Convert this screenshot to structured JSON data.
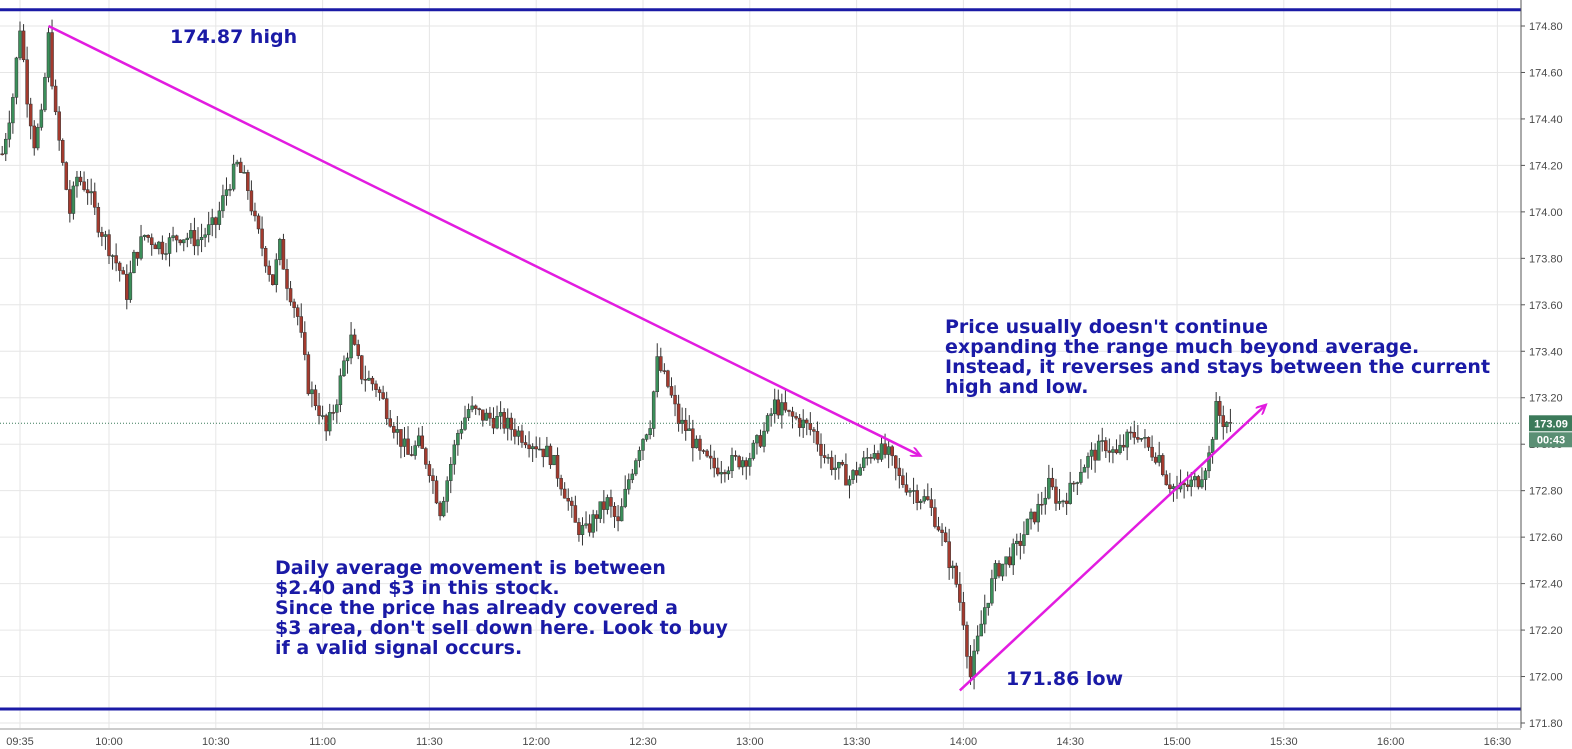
{
  "chart_data": {
    "type": "candlestick",
    "x_ticks": [
      "09:35",
      "10:00",
      "10:30",
      "11:00",
      "11:30",
      "12:00",
      "12:30",
      "13:00",
      "13:30",
      "14:00",
      "14:30",
      "15:00",
      "15:30",
      "16:00",
      "16:30"
    ],
    "y_ticks": [
      "174.80",
      "174.60",
      "174.40",
      "174.20",
      "174.00",
      "173.80",
      "173.60",
      "173.40",
      "173.20",
      "173.00",
      "172.80",
      "172.60",
      "172.40",
      "172.20",
      "172.00",
      "171.80"
    ],
    "y_range": [
      171.8,
      174.87
    ],
    "x_range_time": [
      "09:30",
      "16:40"
    ],
    "high_level": 174.87,
    "low_level": 171.86,
    "current_price": "173.09",
    "countdown": "00:43",
    "close_path": [
      [
        "09:30",
        174.25
      ],
      [
        "09:33",
        174.5
      ],
      [
        "09:35",
        174.8
      ],
      [
        "09:37",
        174.5
      ],
      [
        "09:39",
        174.3
      ],
      [
        "09:41",
        174.4
      ],
      [
        "09:43",
        174.75
      ],
      [
        "09:45",
        174.4
      ],
      [
        "09:47",
        174.2
      ],
      [
        "09:49",
        174.0
      ],
      [
        "09:51",
        174.15
      ],
      [
        "09:54",
        174.1
      ],
      [
        "09:57",
        173.95
      ],
      [
        "10:00",
        173.85
      ],
      [
        "10:03",
        173.75
      ],
      [
        "10:05",
        173.65
      ],
      [
        "10:07",
        173.8
      ],
      [
        "10:10",
        173.9
      ],
      [
        "10:15",
        173.85
      ],
      [
        "10:20",
        173.9
      ],
      [
        "10:25",
        173.88
      ],
      [
        "10:30",
        173.95
      ],
      [
        "10:33",
        174.1
      ],
      [
        "10:36",
        174.2
      ],
      [
        "10:39",
        174.1
      ],
      [
        "10:41",
        173.95
      ],
      [
        "10:44",
        173.8
      ],
      [
        "10:46",
        173.7
      ],
      [
        "10:48",
        173.85
      ],
      [
        "10:50",
        173.7
      ],
      [
        "10:53",
        173.55
      ],
      [
        "10:56",
        173.25
      ],
      [
        "10:59",
        173.15
      ],
      [
        "11:01",
        173.05
      ],
      [
        "11:04",
        173.2
      ],
      [
        "11:06",
        173.35
      ],
      [
        "11:08",
        173.45
      ],
      [
        "11:11",
        173.3
      ],
      [
        "11:15",
        173.25
      ],
      [
        "11:18",
        173.15
      ],
      [
        "11:21",
        173.05
      ],
      [
        "11:24",
        172.95
      ],
      [
        "11:27",
        173.0
      ],
      [
        "11:30",
        172.9
      ],
      [
        "11:33",
        172.72
      ],
      [
        "11:35",
        172.85
      ],
      [
        "11:38",
        173.05
      ],
      [
        "11:41",
        173.15
      ],
      [
        "11:45",
        173.12
      ],
      [
        "11:50",
        173.1
      ],
      [
        "11:55",
        173.05
      ],
      [
        "12:00",
        173.0
      ],
      [
        "12:04",
        172.95
      ],
      [
        "12:08",
        172.8
      ],
      [
        "12:11",
        172.65
      ],
      [
        "12:14",
        172.62
      ],
      [
        "12:17",
        172.7
      ],
      [
        "12:20",
        172.75
      ],
      [
        "12:23",
        172.65
      ],
      [
        "12:26",
        172.85
      ],
      [
        "12:29",
        173.0
      ],
      [
        "12:32",
        173.1
      ],
      [
        "12:34",
        173.35
      ],
      [
        "12:37",
        173.25
      ],
      [
        "12:40",
        173.1
      ],
      [
        "12:43",
        173.05
      ],
      [
        "12:46",
        172.95
      ],
      [
        "12:50",
        172.9
      ],
      [
        "12:55",
        172.92
      ],
      [
        "13:00",
        172.95
      ],
      [
        "13:04",
        173.05
      ],
      [
        "13:07",
        173.17
      ],
      [
        "13:11",
        173.12
      ],
      [
        "13:14",
        173.1
      ],
      [
        "13:18",
        173.05
      ],
      [
        "13:21",
        172.95
      ],
      [
        "13:24",
        172.9
      ],
      [
        "13:28",
        172.85
      ],
      [
        "13:31",
        172.9
      ],
      [
        "13:35",
        172.98
      ],
      [
        "13:39",
        172.95
      ],
      [
        "13:42",
        172.85
      ],
      [
        "13:46",
        172.8
      ],
      [
        "13:50",
        172.75
      ],
      [
        "13:53",
        172.65
      ],
      [
        "13:56",
        172.5
      ],
      [
        "13:58",
        172.4
      ],
      [
        "14:00",
        172.25
      ],
      [
        "14:02",
        172.0
      ],
      [
        "14:04",
        172.15
      ],
      [
        "14:06",
        172.3
      ],
      [
        "14:09",
        172.45
      ],
      [
        "14:12",
        172.5
      ],
      [
        "14:15",
        172.55
      ],
      [
        "14:18",
        172.65
      ],
      [
        "14:21",
        172.72
      ],
      [
        "14:24",
        172.82
      ],
      [
        "14:27",
        172.75
      ],
      [
        "14:30",
        172.8
      ],
      [
        "14:33",
        172.9
      ],
      [
        "14:36",
        172.95
      ],
      [
        "14:40",
        173.0
      ],
      [
        "14:43",
        172.95
      ],
      [
        "14:46",
        173.02
      ],
      [
        "14:49",
        173.05
      ],
      [
        "14:52",
        172.98
      ],
      [
        "14:55",
        172.95
      ],
      [
        "14:57",
        172.85
      ],
      [
        "15:00",
        172.8
      ],
      [
        "15:03",
        172.82
      ],
      [
        "15:06",
        172.85
      ],
      [
        "15:09",
        172.95
      ],
      [
        "15:11",
        173.15
      ],
      [
        "15:13",
        173.1
      ],
      [
        "15:15",
        173.09
      ]
    ]
  },
  "annotations": {
    "high_label": "174.87 high",
    "low_label": "171.86 low",
    "right_note": [
      "Price usually doesn't continue",
      "expanding the range much beyond average.",
      "Instead, it reverses and stays between the current",
      "high and low."
    ],
    "bottom_note": [
      "Daily average movement is between",
      "$2.40 and $3 in this stock.",
      "Since the price has already covered a",
      "$3 area, don't sell down here. Look to buy",
      "if a valid signal occurs."
    ]
  },
  "colors": {
    "up": "#3b8f5a",
    "down": "#a33a2e",
    "level_line": "#1a1aa6",
    "trend_arrow": "#e21ce0",
    "annotation": "#1a1aa6",
    "price_badge": "#3c7a5a",
    "grid": "#e6e6e6"
  }
}
